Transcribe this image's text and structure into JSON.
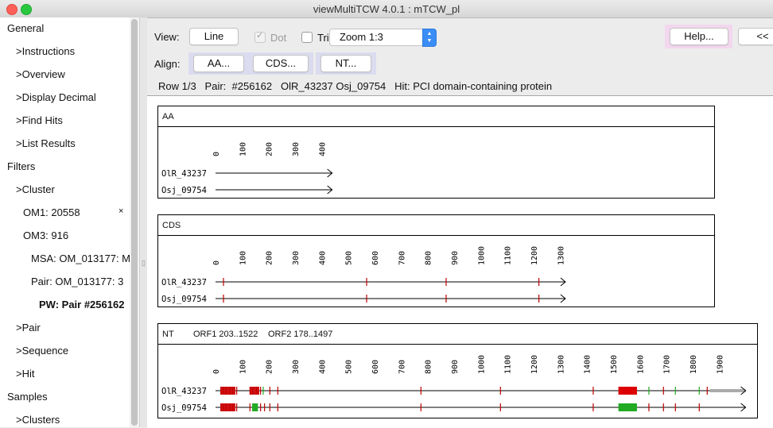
{
  "window": {
    "title": "viewMultiTCW 4.0.1 : mTCW_pl"
  },
  "sidebar": {
    "items": [
      {
        "label": "General",
        "name": "sidebar-item-general",
        "level": 0
      },
      {
        "label": ">Instructions",
        "name": "sidebar-item-instructions",
        "level": 1
      },
      {
        "label": ">Overview",
        "name": "sidebar-item-overview",
        "level": 1
      },
      {
        "label": ">Display Decimal",
        "name": "sidebar-item-display-decimal",
        "level": 1
      },
      {
        "label": ">Find Hits",
        "name": "sidebar-item-find-hits",
        "level": 1
      },
      {
        "label": ">List Results",
        "name": "sidebar-item-list-results",
        "level": 1
      },
      {
        "label": "Filters",
        "name": "sidebar-item-filters",
        "level": 0
      },
      {
        "label": ">Cluster",
        "name": "sidebar-item-cluster",
        "level": 1
      },
      {
        "label": "OM1: 20558",
        "name": "sidebar-item-om1",
        "level": 2,
        "close": "×"
      },
      {
        "label": "OM3: 916",
        "name": "sidebar-item-om3",
        "level": 2
      },
      {
        "label": "MSA: OM_013177: M",
        "name": "sidebar-item-msa",
        "level": 3
      },
      {
        "label": "Pair: OM_013177: 3",
        "name": "sidebar-item-pair-om",
        "level": 3
      },
      {
        "label": "PW: Pair #256162",
        "name": "sidebar-item-pw-pair",
        "level": 4,
        "selected": true
      },
      {
        "label": ">Pair",
        "name": "sidebar-item-pair",
        "level": 1
      },
      {
        "label": ">Sequence",
        "name": "sidebar-item-sequence",
        "level": 1
      },
      {
        "label": ">Hit",
        "name": "sidebar-item-hit",
        "level": 1
      },
      {
        "label": "Samples",
        "name": "sidebar-item-samples",
        "level": 0
      },
      {
        "label": ">Clusters",
        "name": "sidebar-item-clusters",
        "level": 1
      }
    ]
  },
  "toolbar": {
    "view_label": "View:",
    "line_button": "Line",
    "dot_label": "Dot",
    "dot_checked": true,
    "trim_label": "Trim",
    "trim_checked": false,
    "zoom_value": "Zoom 1:3",
    "help_button": "Help...",
    "prev_button": "<<",
    "align_label": "Align:",
    "aa_button": "AA...",
    "cds_button": "CDS...",
    "nt_button": "NT..."
  },
  "info": {
    "row": "Row 1/3",
    "pair_label": "Pair:",
    "pair_id": "#256162",
    "seq1": "OlR_43237",
    "seq2": "Osj_09754",
    "hit_label": "Hit:",
    "hit_desc": "PCI domain-containing protein"
  },
  "panels": [
    {
      "key": "aa",
      "title": "AA",
      "ticks": [
        "0",
        "100",
        "200",
        "300",
        "400"
      ],
      "length": 440,
      "seqs": [
        {
          "name": "OlR_43237",
          "marks": []
        },
        {
          "name": "Osj_09754",
          "marks": []
        }
      ]
    },
    {
      "key": "cds",
      "title": "CDS",
      "ticks": [
        "0",
        "100",
        "200",
        "300",
        "400",
        "500",
        "600",
        "700",
        "800",
        "900",
        "1000",
        "1100",
        "1200",
        "1300"
      ],
      "length": 1320,
      "seqs": [
        {
          "name": "OlR_43237",
          "marks": [
            {
              "pos": 30,
              "color": "#c00000"
            },
            {
              "pos": 570,
              "color": "#c00000"
            },
            {
              "pos": 870,
              "color": "#c00000"
            },
            {
              "pos": 1220,
              "color": "#c00000"
            }
          ]
        },
        {
          "name": "Osj_09754",
          "marks": [
            {
              "pos": 30,
              "color": "#c00000"
            },
            {
              "pos": 570,
              "color": "#c00000"
            },
            {
              "pos": 870,
              "color": "#c00000"
            },
            {
              "pos": 1220,
              "color": "#c00000"
            }
          ]
        }
      ]
    },
    {
      "key": "nt",
      "title": "NT",
      "orf1": "ORF1 203..1522",
      "orf2": "ORF2 178..1497",
      "ticks": [
        "0",
        "100",
        "200",
        "300",
        "400",
        "500",
        "600",
        "700",
        "800",
        "900",
        "1000",
        "1100",
        "1200",
        "1300",
        "1400",
        "1500",
        "1600",
        "1700",
        "1800",
        "1900"
      ],
      "length": 2000,
      "seqs": [
        {
          "name": "OlR_43237",
          "overhang": [
            1865,
            2000
          ],
          "marks": [
            {
              "pos": 20,
              "color": "#c00000"
            },
            {
              "pos": 30,
              "color": "#c00000"
            },
            {
              "pos": 40,
              "color": "#c00000"
            },
            {
              "pos": 55,
              "color": "#c00000"
            },
            {
              "pos": 65,
              "color": "#c00000"
            },
            {
              "pos": 80,
              "color": "#c00000"
            },
            {
              "pos": 130,
              "color": "#c00000"
            },
            {
              "pos": 140,
              "color": "#c00000"
            },
            {
              "pos": 155,
              "color": "#c00000"
            },
            {
              "pos": 170,
              "color": "#c00000"
            },
            {
              "pos": 180,
              "color": "#22aa22"
            },
            {
              "pos": 205,
              "color": "#c00000"
            },
            {
              "pos": 235,
              "color": "#c00000"
            },
            {
              "pos": 775,
              "color": "#c00000"
            },
            {
              "pos": 1075,
              "color": "#c00000"
            },
            {
              "pos": 1425,
              "color": "#c00000"
            },
            {
              "pos": 1635,
              "color": "#22aa22"
            },
            {
              "pos": 1690,
              "color": "#c00000"
            },
            {
              "pos": 1735,
              "color": "#22aa22"
            },
            {
              "pos": 1825,
              "color": "#22aa22"
            },
            {
              "pos": 1855,
              "color": "#c00000"
            }
          ],
          "blocks": [
            {
              "from": 20,
              "to": 75,
              "color": "#d01010"
            },
            {
              "from": 130,
              "to": 165,
              "color": "#d01010"
            },
            {
              "from": 1520,
              "to": 1590,
              "color": "#dd0000"
            }
          ]
        },
        {
          "name": "Osj_09754",
          "overhang": null,
          "marks": [
            {
              "pos": 20,
              "color": "#c00000"
            },
            {
              "pos": 30,
              "color": "#c00000"
            },
            {
              "pos": 40,
              "color": "#c00000"
            },
            {
              "pos": 55,
              "color": "#c00000"
            },
            {
              "pos": 65,
              "color": "#c00000"
            },
            {
              "pos": 80,
              "color": "#c00000"
            },
            {
              "pos": 130,
              "color": "#c00000"
            },
            {
              "pos": 140,
              "color": "#22aa22"
            },
            {
              "pos": 155,
              "color": "#22aa22"
            },
            {
              "pos": 170,
              "color": "#c00000"
            },
            {
              "pos": 185,
              "color": "#c00000"
            },
            {
              "pos": 205,
              "color": "#c00000"
            },
            {
              "pos": 235,
              "color": "#c00000"
            },
            {
              "pos": 775,
              "color": "#c00000"
            },
            {
              "pos": 1075,
              "color": "#c00000"
            },
            {
              "pos": 1425,
              "color": "#c00000"
            },
            {
              "pos": 1635,
              "color": "#c00000"
            },
            {
              "pos": 1690,
              "color": "#c00000"
            },
            {
              "pos": 1735,
              "color": "#c00000"
            },
            {
              "pos": 1825,
              "color": "#c00000"
            }
          ],
          "blocks": [
            {
              "from": 20,
              "to": 75,
              "color": "#d01010"
            },
            {
              "from": 140,
              "to": 160,
              "color": "#22aa22"
            },
            {
              "from": 1520,
              "to": 1590,
              "color": "#22aa22"
            }
          ]
        }
      ]
    }
  ]
}
